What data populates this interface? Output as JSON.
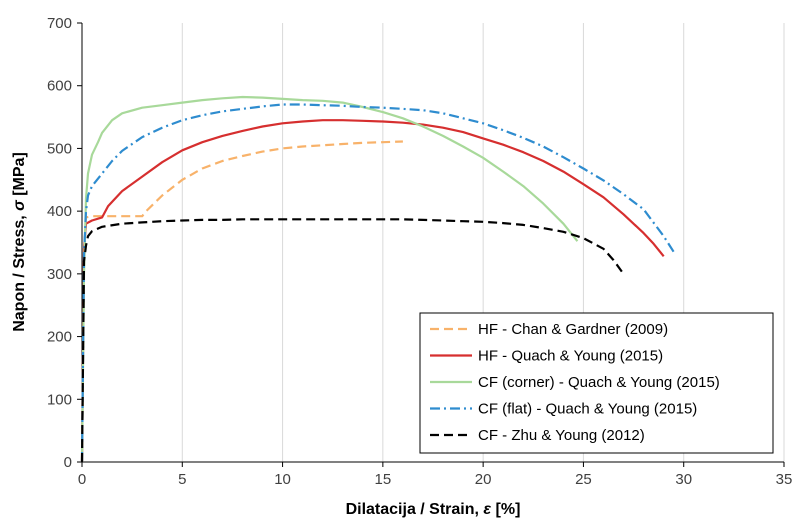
{
  "chart_data": {
    "type": "line",
    "xlabel_prefix": "Dilatacija / Strain,",
    "xlabel_symbol": "ε",
    "xlabel_unit": "[%]",
    "ylabel_prefix": "Napon / Stress,",
    "ylabel_symbol": "σ",
    "ylabel_unit": "[MPa]",
    "xlim": [
      0,
      35
    ],
    "ylim": [
      0,
      700
    ],
    "xticks": [
      0,
      5,
      10,
      15,
      20,
      25,
      30,
      35
    ],
    "yticks": [
      0,
      100,
      200,
      300,
      400,
      500,
      600,
      700
    ],
    "grid": "vertical",
    "legend_position": "bottom-right",
    "series": [
      {
        "name": "HF - Chan & Gardner (2009)",
        "color": "#F8B26A",
        "style": "dashed",
        "x": [
          0,
          0.1,
          0.2,
          0.5,
          1,
          2,
          3,
          3.2,
          4,
          5,
          6,
          7,
          8,
          9,
          10,
          11,
          12,
          13,
          14,
          15,
          16
        ],
        "y": [
          0,
          330,
          390,
          392,
          392,
          392,
          392,
          400,
          425,
          450,
          468,
          480,
          488,
          495,
          500,
          503,
          505,
          507,
          509,
          510,
          511
        ]
      },
      {
        "name": "HF - Quach & Young (2015)",
        "color": "#D62F2F",
        "style": "solid",
        "x": [
          0,
          0.1,
          0.2,
          0.5,
          1,
          1.3,
          2,
          3,
          4,
          5,
          6,
          7,
          8,
          9,
          10,
          11,
          12,
          13,
          14,
          15,
          16,
          17,
          18,
          19,
          20,
          21,
          22,
          23,
          24,
          25,
          26,
          27,
          28,
          28.5,
          29
        ],
        "y": [
          0,
          340,
          380,
          385,
          390,
          408,
          432,
          455,
          478,
          497,
          510,
          520,
          528,
          535,
          540,
          543,
          545,
          545,
          544,
          543,
          541,
          538,
          533,
          526,
          516,
          506,
          494,
          480,
          463,
          443,
          422,
          395,
          365,
          348,
          328
        ]
      },
      {
        "name": "CF (corner) - Quach & Young (2015)",
        "color": "#A8D99A",
        "style": "solid",
        "x": [
          0,
          0.1,
          0.2,
          0.3,
          0.5,
          0.8,
          1,
          1.5,
          2,
          3,
          4,
          5,
          6,
          7,
          8,
          9,
          10,
          11,
          12,
          13,
          14,
          15,
          16,
          17,
          18,
          19,
          20,
          21,
          22,
          23,
          24,
          24.7
        ],
        "y": [
          0,
          300,
          420,
          460,
          490,
          510,
          525,
          545,
          556,
          565,
          569,
          573,
          577,
          580,
          582,
          581,
          579,
          577,
          576,
          573,
          566,
          558,
          548,
          535,
          520,
          503,
          485,
          463,
          440,
          412,
          380,
          352
        ]
      },
      {
        "name": "CF (flat) - Quach & Young (2015)",
        "color": "#2E8CCF",
        "style": "dashdot",
        "x": [
          0,
          0.1,
          0.2,
          0.3,
          0.5,
          1,
          1.5,
          2,
          3,
          4,
          5,
          6,
          7,
          8,
          9,
          10,
          11,
          12,
          13,
          14,
          15,
          16,
          17,
          18,
          19,
          20,
          21,
          22,
          23,
          24,
          25,
          26,
          27,
          28,
          29,
          29.6
        ],
        "y": [
          0,
          330,
          400,
          425,
          440,
          460,
          480,
          496,
          518,
          533,
          545,
          553,
          559,
          563,
          567,
          570,
          570,
          569,
          568,
          566,
          565,
          563,
          561,
          556,
          548,
          540,
          529,
          517,
          503,
          486,
          468,
          449,
          427,
          403,
          360,
          330
        ]
      },
      {
        "name": "CF - Zhu & Young (2012)",
        "color": "#000000",
        "style": "dashed",
        "x": [
          0,
          0.1,
          0.2,
          0.3,
          0.5,
          1,
          2,
          3,
          4,
          5,
          6,
          7,
          8,
          9,
          10,
          11,
          12,
          13,
          14,
          15,
          16,
          17,
          18,
          19,
          20,
          21,
          22,
          23,
          24,
          25,
          26,
          26.5,
          27
        ],
        "y": [
          0,
          320,
          345,
          360,
          368,
          375,
          380,
          382,
          384,
          385,
          386,
          386,
          387,
          387,
          387,
          387,
          387,
          387,
          387,
          387,
          387,
          386,
          385,
          384,
          383,
          381,
          378,
          373,
          367,
          357,
          340,
          322,
          300
        ]
      }
    ]
  }
}
